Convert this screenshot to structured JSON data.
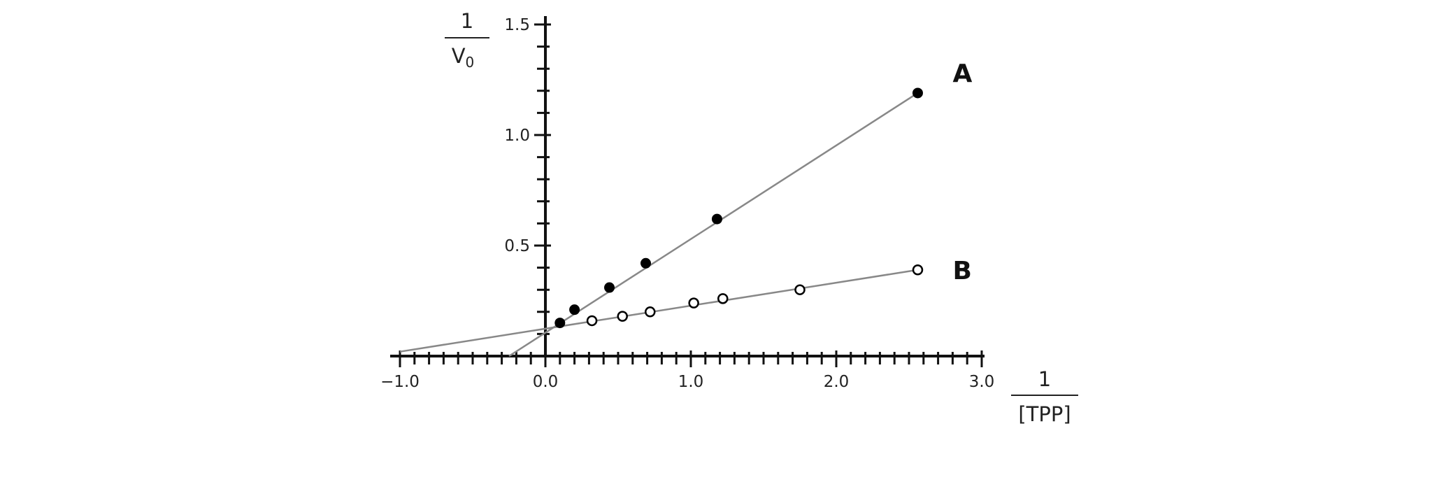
{
  "chart_data": {
    "type": "scatter",
    "title": "",
    "xlabel": {
      "numerator": "1",
      "denominator": "[TPP]"
    },
    "ylabel": {
      "numerator": "1",
      "denominator": "V",
      "denominator_sub": "0"
    },
    "xlim": [
      -1.0,
      3.0
    ],
    "ylim": [
      0,
      1.5
    ],
    "x_ticks": [
      {
        "value": -1.0,
        "label": "−1.0"
      },
      {
        "value": 0.0,
        "label": "0.0"
      },
      {
        "value": 1.0,
        "label": "1.0"
      },
      {
        "value": 2.0,
        "label": "2.0"
      },
      {
        "value": 3.0,
        "label": "3.0"
      }
    ],
    "y_ticks": [
      {
        "value": 0.5,
        "label": "0.5"
      },
      {
        "value": 1.0,
        "label": "1.0"
      },
      {
        "value": 1.5,
        "label": "1.5"
      }
    ],
    "grid": false,
    "series": [
      {
        "name": "A",
        "marker": "filled",
        "points": [
          {
            "x": 0.1,
            "y": 0.15
          },
          {
            "x": 0.2,
            "y": 0.21
          },
          {
            "x": 0.44,
            "y": 0.31
          },
          {
            "x": 0.69,
            "y": 0.42
          },
          {
            "x": 1.18,
            "y": 0.62
          },
          {
            "x": 2.56,
            "y": 1.19
          }
        ],
        "line": [
          {
            "x": -0.25,
            "y": 0.0
          },
          {
            "x": 2.56,
            "y": 1.19
          }
        ]
      },
      {
        "name": "B",
        "marker": "open",
        "points": [
          {
            "x": 0.32,
            "y": 0.16
          },
          {
            "x": 0.53,
            "y": 0.18
          },
          {
            "x": 0.72,
            "y": 0.2
          },
          {
            "x": 1.02,
            "y": 0.24
          },
          {
            "x": 1.22,
            "y": 0.26
          },
          {
            "x": 1.75,
            "y": 0.3
          },
          {
            "x": 2.56,
            "y": 0.39
          }
        ],
        "line": [
          {
            "x": -1.0,
            "y": 0.02
          },
          {
            "x": 2.56,
            "y": 0.39
          }
        ]
      }
    ]
  }
}
